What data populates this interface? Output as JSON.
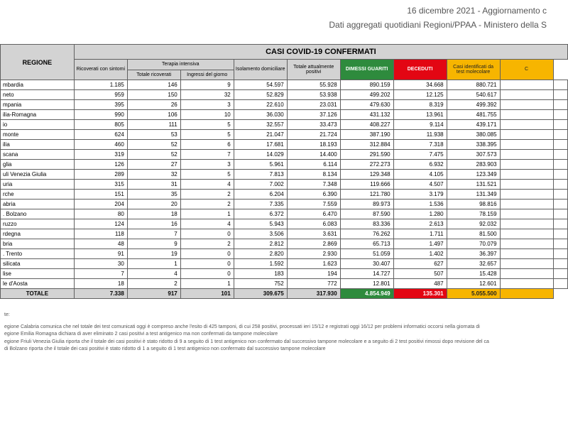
{
  "header": {
    "date_line": "16 dicembre 2021 - Aggiornamento c",
    "sub_line": "Dati aggregati quotidiani Regioni/PPAA - Ministero della S"
  },
  "table": {
    "main_header": "CASI COVID-19 CONFERMATI",
    "regione_header": "REGIONE",
    "sub_headers": {
      "ricoverati": "Ricoverati con sintomi",
      "terapia_intensiva": "Terapia intensiva",
      "totale_ricoverati": "Totale ricoverati",
      "ingressi": "Ingressi del giorno",
      "isolamento": "Isolamento domiciliare",
      "tot_positivi": "Totale attualmente positivi",
      "dimessi": "DIMESSI GUARITI",
      "deceduti": "DECEDUTI",
      "casi_test": "Casi identificati da test molecolare",
      "edge": "C"
    },
    "total_label": "TOTALE",
    "rows": [
      {
        "r": "mbardia",
        "v": [
          "1.185",
          "146",
          "9",
          "54.597",
          "55.928",
          "890.159",
          "34.668",
          "880.721"
        ]
      },
      {
        "r": "neto",
        "v": [
          "959",
          "150",
          "32",
          "52.829",
          "53.938",
          "499.202",
          "12.125",
          "540.617"
        ]
      },
      {
        "r": "mpania",
        "v": [
          "395",
          "26",
          "3",
          "22.610",
          "23.031",
          "479.630",
          "8.319",
          "499.392"
        ]
      },
      {
        "r": "ilia-Romagna",
        "v": [
          "990",
          "106",
          "10",
          "36.030",
          "37.126",
          "431.132",
          "13.961",
          "481.755"
        ]
      },
      {
        "r": "io",
        "v": [
          "805",
          "111",
          "5",
          "32.557",
          "33.473",
          "408.227",
          "9.114",
          "439.171"
        ]
      },
      {
        "r": "monte",
        "v": [
          "624",
          "53",
          "5",
          "21.047",
          "21.724",
          "387.190",
          "11.938",
          "380.085"
        ]
      },
      {
        "r": "ilia",
        "v": [
          "460",
          "52",
          "6",
          "17.681",
          "18.193",
          "312.884",
          "7.318",
          "338.395"
        ]
      },
      {
        "r": "scana",
        "v": [
          "319",
          "52",
          "7",
          "14.029",
          "14.400",
          "291.590",
          "7.475",
          "307.573"
        ]
      },
      {
        "r": "glia",
        "v": [
          "126",
          "27",
          "3",
          "5.961",
          "6.114",
          "272.273",
          "6.932",
          "283.903"
        ]
      },
      {
        "r": "uli Venezia Giulia",
        "v": [
          "289",
          "32",
          "5",
          "7.813",
          "8.134",
          "129.348",
          "4.105",
          "123.349"
        ]
      },
      {
        "r": "uria",
        "v": [
          "315",
          "31",
          "4",
          "7.002",
          "7.348",
          "119.666",
          "4.507",
          "131.521"
        ]
      },
      {
        "r": "rche",
        "v": [
          "151",
          "35",
          "2",
          "6.204",
          "6.390",
          "121.780",
          "3.179",
          "131.349"
        ]
      },
      {
        "r": "abria",
        "v": [
          "204",
          "20",
          "2",
          "7.335",
          "7.559",
          "89.973",
          "1.536",
          "98.816"
        ]
      },
      {
        "r": ". Bolzano",
        "v": [
          "80",
          "18",
          "1",
          "6.372",
          "6.470",
          "87.590",
          "1.280",
          "78.159"
        ]
      },
      {
        "r": "ruzzo",
        "v": [
          "124",
          "16",
          "4",
          "5.943",
          "6.083",
          "83.336",
          "2.613",
          "92.032"
        ]
      },
      {
        "r": "rdegna",
        "v": [
          "118",
          "7",
          "0",
          "3.506",
          "3.631",
          "76.262",
          "1.711",
          "81.500"
        ]
      },
      {
        "r": "bria",
        "v": [
          "48",
          "9",
          "2",
          "2.812",
          "2.869",
          "65.713",
          "1.497",
          "70.079"
        ]
      },
      {
        "r": ". Trento",
        "v": [
          "91",
          "19",
          "0",
          "2.820",
          "2.930",
          "51.059",
          "1.402",
          "36.397"
        ]
      },
      {
        "r": "silicata",
        "v": [
          "30",
          "1",
          "0",
          "1.592",
          "1.623",
          "30.407",
          "627",
          "32.657"
        ]
      },
      {
        "r": "lise",
        "v": [
          "7",
          "4",
          "0",
          "183",
          "194",
          "14.727",
          "507",
          "15.428"
        ]
      },
      {
        "r": "le d'Aosta",
        "v": [
          "18",
          "2",
          "1",
          "752",
          "772",
          "12.801",
          "487",
          "12.601"
        ]
      }
    ],
    "totals": [
      "7.338",
      "917",
      "101",
      "309.675",
      "317.930",
      "4.854.949",
      "135.301",
      "5.055.500"
    ]
  },
  "notes": {
    "title": "te:",
    "lines": [
      "egione Calabria comunica che nel totale dei test comunicati oggi è compreso anche l'esito di 425 tamponi, di cui 258 positivi, processati ieri 15/12 e registrati oggi 16/12 per problemi informatici occorsi nella giornata di",
      "egione Emilia Romagna dichiara di aver eliminato 2 casi positivi a test antigenico ma non confermati da tampone molecolare",
      "egione Friuli Venezia Giulia riporta che il totale dei casi positivi è stato ridotto di 9 a seguito di 1 test antigenico non confermato dal successivo tampone molecolare e a seguito di 2 test positivi rimossi dopo revisione del ca",
      "di Bolzano riporta che il totale dei casi positivi è stato ridotto di 1 a seguito di 1 test antigenico non confermato dal successivo tampone molecolare"
    ]
  },
  "style": {
    "colors": {
      "header_bg": "#d3d3d3",
      "green": "#2e8b3d",
      "red": "#e30613",
      "yellow": "#f7b500",
      "border": "#606060",
      "text_muted": "#555555",
      "background": "#ffffff"
    },
    "font_sizes": {
      "header_line": 12,
      "main_head": 11,
      "regione_head": 9,
      "cell": 8,
      "sub_head": 7,
      "notes": 7
    }
  }
}
